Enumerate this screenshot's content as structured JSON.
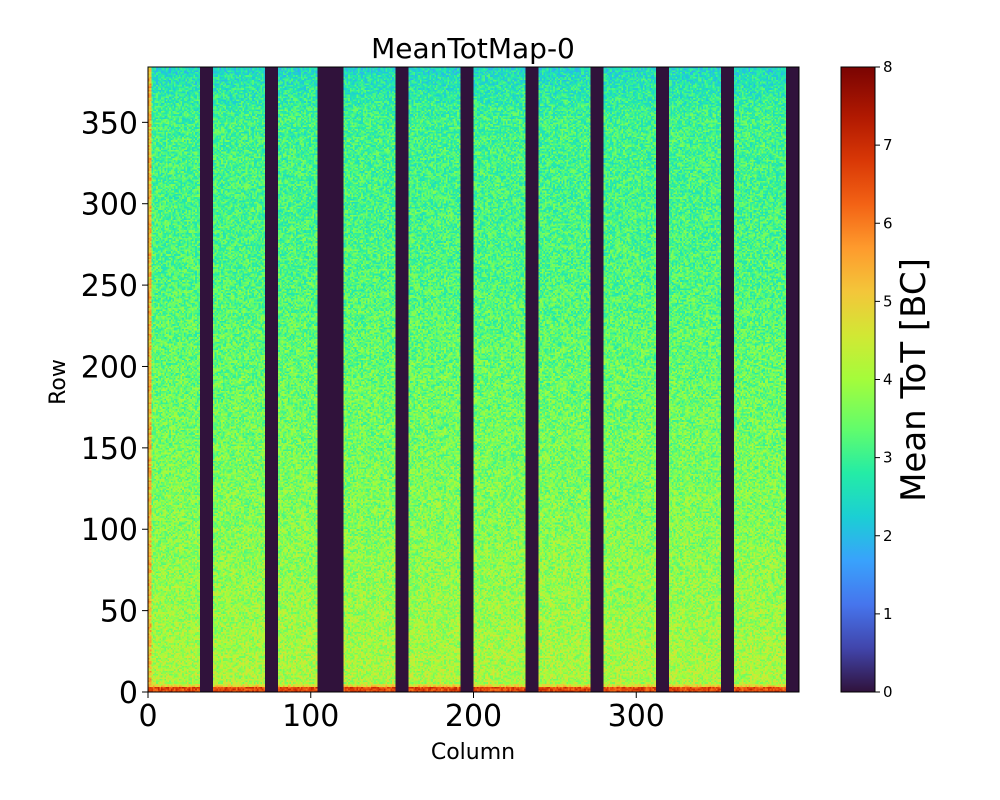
{
  "chart_data": {
    "type": "heatmap",
    "title": "MeanTotMap-0",
    "xlabel": "Column",
    "ylabel": "Row",
    "xlim": [
      0,
      400
    ],
    "ylim": [
      0,
      384
    ],
    "x_ticks": [
      0,
      100,
      200,
      300
    ],
    "y_ticks": [
      0,
      50,
      100,
      150,
      200,
      250,
      300,
      350
    ],
    "colorbar": {
      "label": "Mean ToT [BC]",
      "min": 0,
      "max": 8,
      "ticks": [
        0,
        1,
        2,
        3,
        4,
        5,
        6,
        7,
        8
      ],
      "colormap": "turbo"
    },
    "masked_column_ranges": [
      [
        32,
        40
      ],
      [
        72,
        80
      ],
      [
        104,
        120
      ],
      [
        152,
        160
      ],
      [
        192,
        200
      ],
      [
        232,
        240
      ],
      [
        272,
        280
      ],
      [
        312,
        320
      ],
      [
        352,
        360
      ],
      [
        392,
        400
      ]
    ],
    "value_profile": [
      {
        "row": 0,
        "mean_tot": 6.5
      },
      {
        "row": 5,
        "mean_tot": 4.1
      },
      {
        "row": 50,
        "mean_tot": 3.9
      },
      {
        "row": 100,
        "mean_tot": 3.7
      },
      {
        "row": 150,
        "mean_tot": 3.55
      },
      {
        "row": 200,
        "mean_tot": 3.4
      },
      {
        "row": 250,
        "mean_tot": 3.2
      },
      {
        "row": 300,
        "mean_tot": 3.1
      },
      {
        "row": 350,
        "mean_tot": 3.05
      },
      {
        "row": 378,
        "mean_tot": 2.6
      },
      {
        "row": 384,
        "mean_tot": 2.3
      }
    ]
  }
}
